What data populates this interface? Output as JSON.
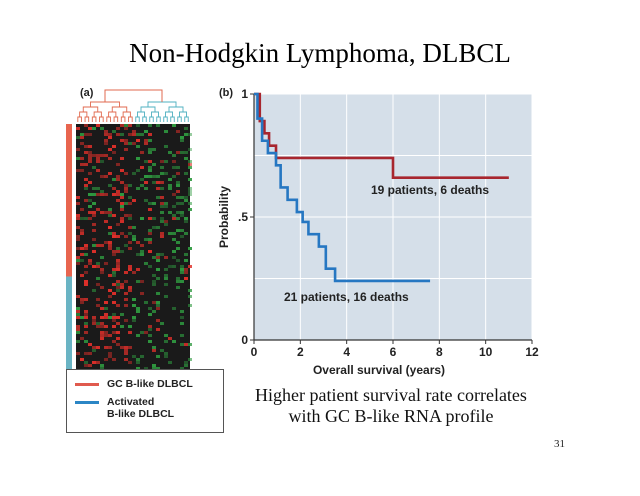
{
  "slide": {
    "title": "Non-Hodgkin Lymphoma, DLBCL",
    "caption_line1": "Higher patient survival rate correlates",
    "caption_line2": "with GC B-like RNA profile",
    "page_number": "31"
  },
  "panel_a": {
    "label": "(a)",
    "group_bar_fractions": {
      "gc": 0.62,
      "activated": 0.38
    },
    "legend": [
      {
        "label": "GC B-like DLBCL",
        "color": "#e05a4e"
      },
      {
        "label_line1": "Activated",
        "label_line2": "B-like DLBCL",
        "color": "#2b86c5"
      }
    ],
    "colors": {
      "gc_bar": "#e8654f",
      "activated_bar": "#6ab4c4",
      "dendrogram_left": "#e06a4f",
      "dendrogram_right": "#4fb0c0",
      "heat_red": "#e0302a",
      "heat_green": "#2f9a40",
      "heat_dark": "#1a1a1a"
    }
  },
  "chart_data": {
    "type": "line",
    "panel_label": "(b)",
    "xlabel": "Overall survival (years)",
    "ylabel": "Probability",
    "xlim": [
      0,
      12
    ],
    "ylim": [
      0,
      1
    ],
    "x_ticks": [
      "0",
      "2",
      "4",
      "6",
      "8",
      "10",
      "12"
    ],
    "y_ticks": [
      "0",
      ".5",
      "1"
    ],
    "grid": true,
    "series": [
      {
        "name": "19 patients, 6 deaths",
        "color": "#a8262e",
        "steps": [
          [
            0,
            1.0
          ],
          [
            0.25,
            0.89
          ],
          [
            0.45,
            0.84
          ],
          [
            0.65,
            0.79
          ],
          [
            0.95,
            0.74
          ],
          [
            6.0,
            0.66
          ],
          [
            11.0,
            0.66
          ]
        ]
      },
      {
        "name": "21 patients, 16 deaths",
        "color": "#2677c2",
        "steps": [
          [
            0,
            1.0
          ],
          [
            0.15,
            0.9
          ],
          [
            0.35,
            0.81
          ],
          [
            0.6,
            0.76
          ],
          [
            0.95,
            0.71
          ],
          [
            1.15,
            0.62
          ],
          [
            1.45,
            0.57
          ],
          [
            1.85,
            0.52
          ],
          [
            2.1,
            0.48
          ],
          [
            2.35,
            0.43
          ],
          [
            2.8,
            0.38
          ],
          [
            3.1,
            0.29
          ],
          [
            3.5,
            0.24
          ],
          [
            7.6,
            0.24
          ]
        ]
      }
    ]
  }
}
